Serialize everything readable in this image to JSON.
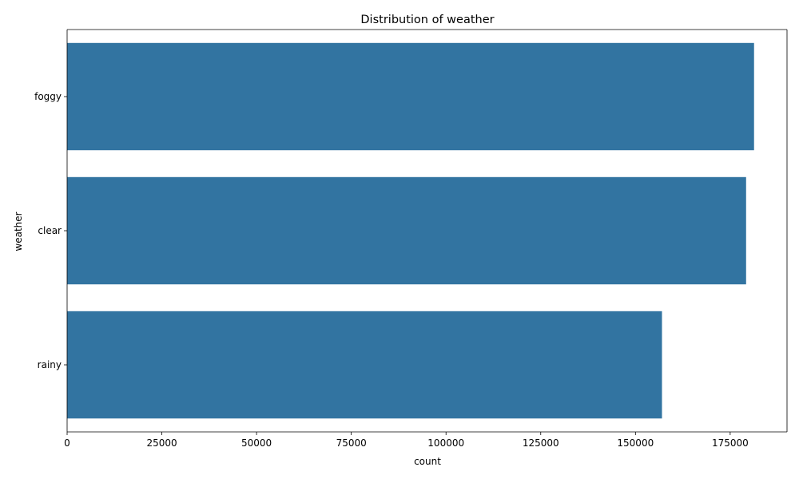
{
  "chart_data": {
    "type": "bar",
    "orientation": "horizontal",
    "title": "Distribution of weather",
    "xlabel": "count",
    "ylabel": "weather",
    "categories": [
      "foggy",
      "clear",
      "rainy"
    ],
    "values": [
      181300,
      179200,
      157000
    ],
    "xlim": [
      0,
      190000
    ],
    "xticks": [
      0,
      25000,
      50000,
      75000,
      100000,
      125000,
      150000,
      175000
    ],
    "grid": false,
    "bar_color": "#3274a1"
  }
}
